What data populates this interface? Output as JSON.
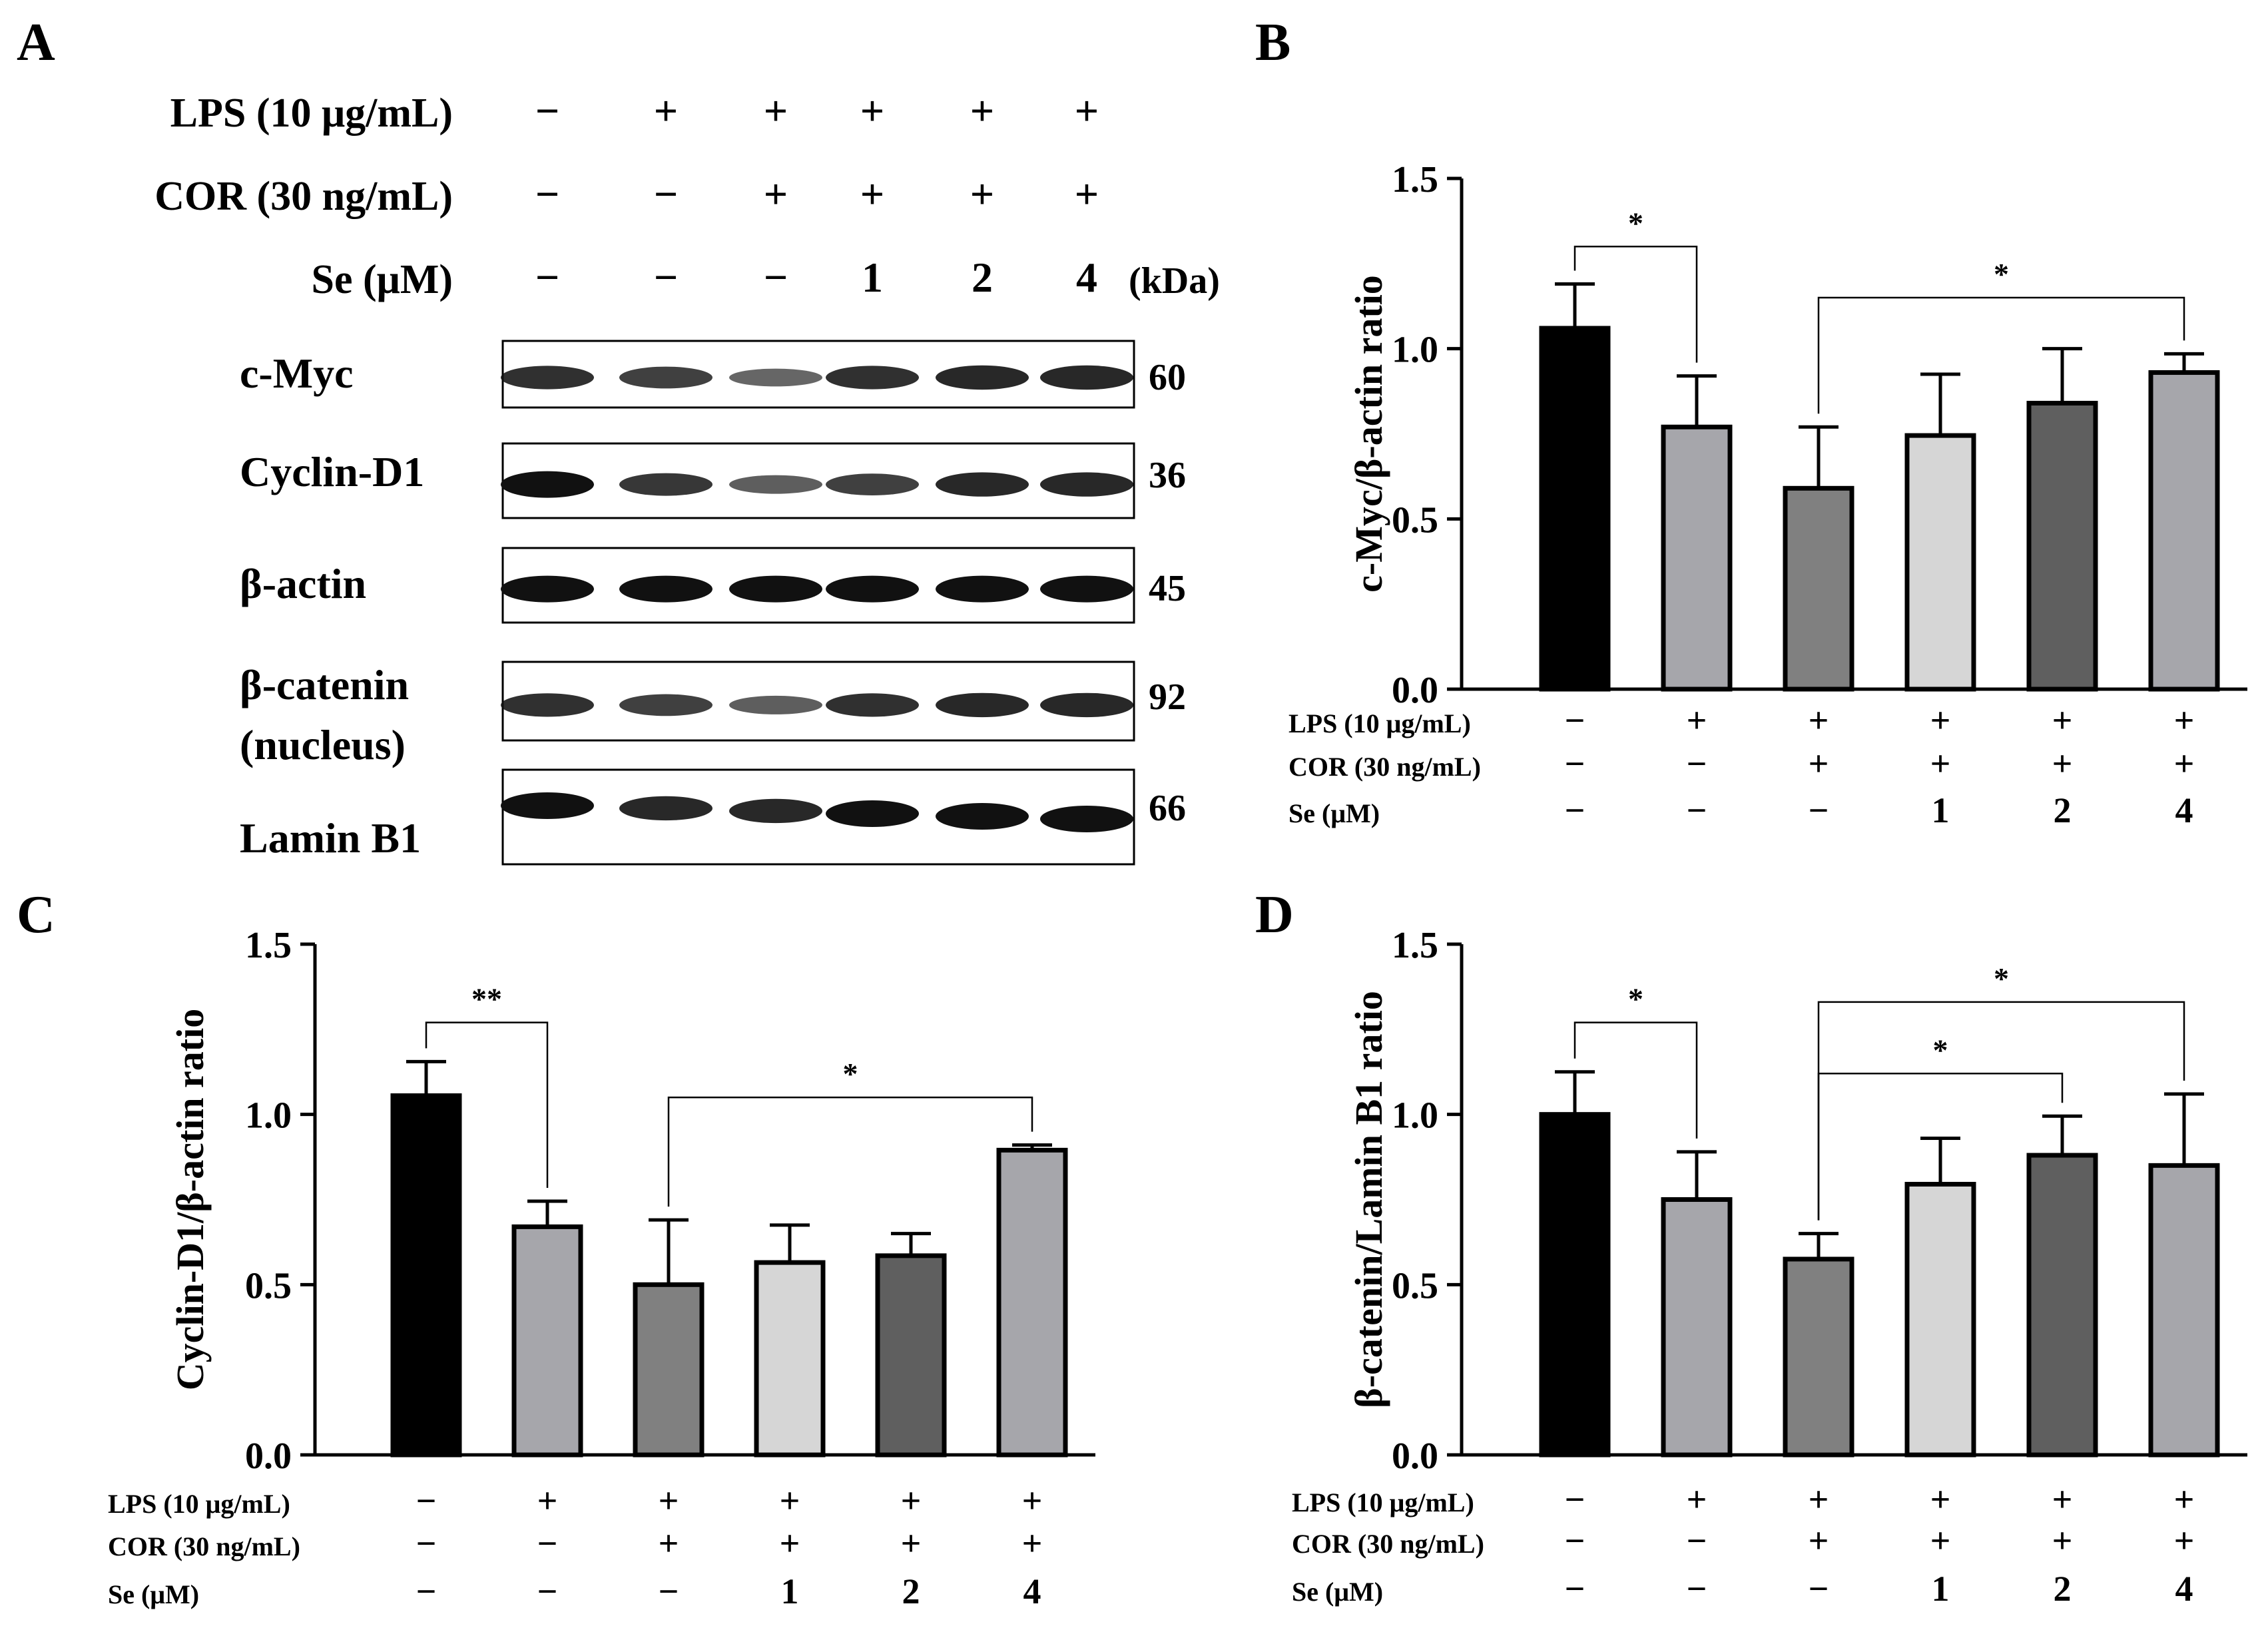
{
  "panels": {
    "A": {
      "label": "A"
    },
    "B": {
      "label": "B"
    },
    "C": {
      "label": "C"
    },
    "D": {
      "label": "D"
    }
  },
  "western_blot": {
    "treatments": [
      {
        "label": "LPS (10 μg/mL)",
        "values": [
          "−",
          "+",
          "+",
          "+",
          "+",
          "+"
        ]
      },
      {
        "label": "COR (30 ng/mL)",
        "values": [
          "−",
          "−",
          "+",
          "+",
          "+",
          "+"
        ]
      },
      {
        "label": "Se (μM)",
        "values": [
          "−",
          "−",
          "−",
          "1",
          "2",
          "4"
        ]
      }
    ],
    "kda_header": "(kDa)",
    "blots": [
      {
        "name_lines": [
          "c-Myc"
        ],
        "kda": "60",
        "band_intensity": [
          0.8,
          0.7,
          0.45,
          0.8,
          0.85,
          0.85
        ]
      },
      {
        "name_lines": [
          "Cyclin-D1"
        ],
        "kda": "36",
        "band_intensity": [
          1.0,
          0.75,
          0.5,
          0.7,
          0.85,
          0.85
        ]
      },
      {
        "name_lines": [
          "β-actin"
        ],
        "kda": "45",
        "band_intensity": [
          1.0,
          1.0,
          1.0,
          1.0,
          1.0,
          1.0
        ]
      },
      {
        "name_lines": [
          "β-catenin",
          "(nucleus)"
        ],
        "kda": "92",
        "band_intensity": [
          0.8,
          0.7,
          0.5,
          0.8,
          0.85,
          0.85
        ]
      },
      {
        "name_lines": [
          "Lamin B1"
        ],
        "kda": "66",
        "band_intensity": [
          1.0,
          0.85,
          0.85,
          1.0,
          1.0,
          1.0
        ]
      }
    ]
  },
  "chart_data": [
    {
      "panel": "B",
      "type": "bar",
      "ylabel": "c-Myc/β-actin  ratio",
      "ylim": [
        0,
        1.5
      ],
      "yticks": [
        "0.0",
        "0.5",
        "1.0",
        "1.5"
      ],
      "values": [
        1.06,
        0.77,
        0.59,
        0.745,
        0.84,
        0.93
      ],
      "errors": [
        0.13,
        0.15,
        0.18,
        0.18,
        0.16,
        0.055
      ],
      "colors": [
        "#000000",
        "#a6a6ab",
        "#808080",
        "#d6d6d6",
        "#5f5f5f",
        "#a6a6ab"
      ],
      "treatments": [
        {
          "label": "LPS (10 μg/mL)",
          "values": [
            "−",
            "+",
            "+",
            "+",
            "+",
            "+"
          ]
        },
        {
          "label": "COR (30 ng/mL)",
          "values": [
            "−",
            "−",
            "+",
            "+",
            "+",
            "+"
          ]
        },
        {
          "label": "Se (μM)",
          "values": [
            "−",
            "−",
            "−",
            "1",
            "2",
            "4"
          ]
        }
      ],
      "significance": [
        {
          "from": 0,
          "to": 1,
          "label": "*",
          "y": 1.3
        },
        {
          "from": 2,
          "to": 5,
          "label": "*",
          "y": 1.15
        }
      ]
    },
    {
      "panel": "C",
      "type": "bar",
      "ylabel": "Cyclin-D1/β-actin  ratio",
      "ylim": [
        0,
        1.5
      ],
      "yticks": [
        "0.0",
        "0.5",
        "1.0",
        "1.5"
      ],
      "values": [
        1.055,
        0.67,
        0.5,
        0.565,
        0.585,
        0.895
      ],
      "errors": [
        0.1,
        0.075,
        0.19,
        0.11,
        0.065,
        0.015
      ],
      "colors": [
        "#000000",
        "#a6a6ab",
        "#808080",
        "#d6d6d6",
        "#5f5f5f",
        "#a6a6ab"
      ],
      "treatments": [
        {
          "label": "LPS (10 μg/mL)",
          "values": [
            "−",
            "+",
            "+",
            "+",
            "+",
            "+"
          ]
        },
        {
          "label": "COR (30 ng/mL)",
          "values": [
            "−",
            "−",
            "+",
            "+",
            "+",
            "+"
          ]
        },
        {
          "label": "Se  (μM)",
          "values": [
            "−",
            "−",
            "−",
            "1",
            "2",
            "4"
          ]
        }
      ],
      "significance": [
        {
          "from": 0,
          "to": 1,
          "label": "**",
          "y": 1.27
        },
        {
          "from": 2,
          "to": 5,
          "label": "*",
          "y": 1.05
        }
      ]
    },
    {
      "panel": "D",
      "type": "bar",
      "ylabel": "β-catenin/Lamin B1  ratio",
      "ylim": [
        0,
        1.5
      ],
      "yticks": [
        "0.0",
        "0.5",
        "1.0",
        "1.5"
      ],
      "values": [
        1.0,
        0.75,
        0.575,
        0.795,
        0.88,
        0.85
      ],
      "errors": [
        0.125,
        0.14,
        0.075,
        0.135,
        0.115,
        0.21
      ],
      "colors": [
        "#000000",
        "#a6a6ab",
        "#808080",
        "#d6d6d6",
        "#5f5f5f",
        "#a6a6ab"
      ],
      "treatments": [
        {
          "label": "LPS (10 μg/mL)",
          "values": [
            "−",
            "+",
            "+",
            "+",
            "+",
            "+"
          ]
        },
        {
          "label": "COR (30 ng/mL)",
          "values": [
            "−",
            "−",
            "+",
            "+",
            "+",
            "+"
          ]
        },
        {
          "label": "Se  (μM)",
          "values": [
            "−",
            "−",
            "−",
            "1",
            "2",
            "4"
          ]
        }
      ],
      "significance": [
        {
          "from": 0,
          "to": 1,
          "label": "*",
          "y": 1.27
        },
        {
          "from": 2,
          "to": 4,
          "label": "*",
          "y": 1.12
        },
        {
          "from": 2,
          "to": 5,
          "label": "*",
          "y": 1.33
        }
      ]
    }
  ]
}
